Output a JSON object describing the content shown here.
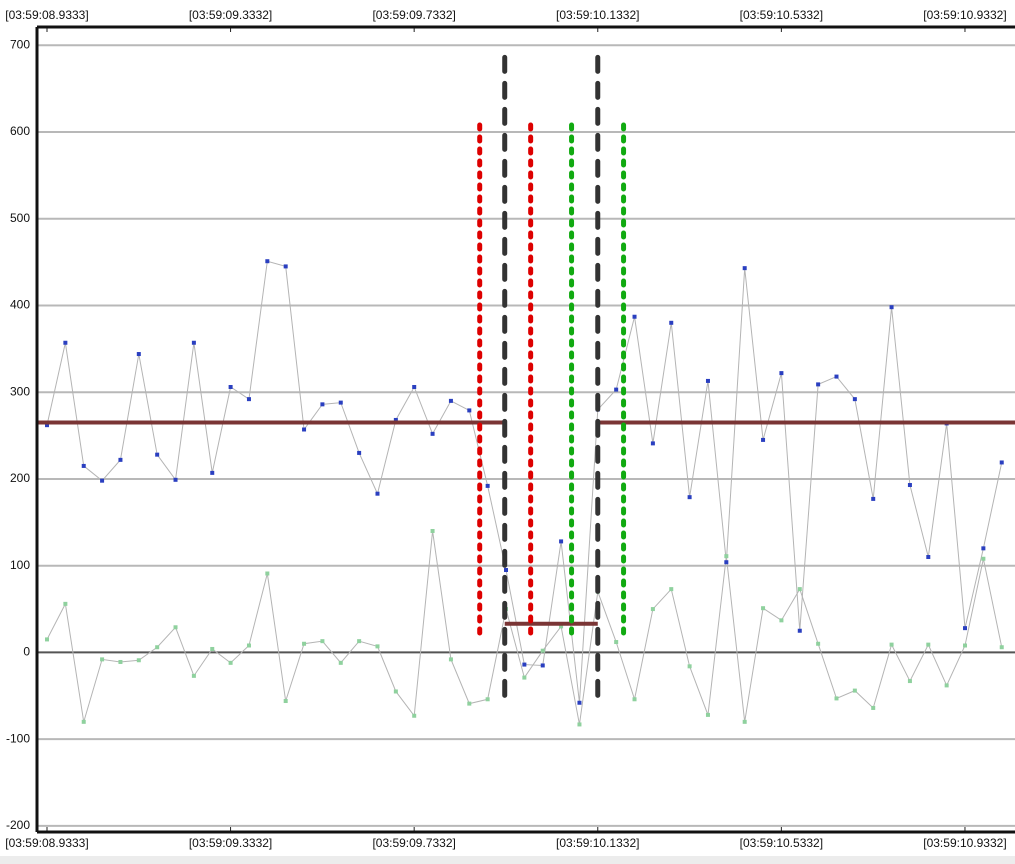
{
  "chart_data": {
    "type": "line",
    "xlim": [
      8.9115,
      11.0422
    ],
    "ylim": [
      -207,
      721
    ],
    "xticks": [
      {
        "value": 8.9333,
        "label": "[03:59:08.9333]"
      },
      {
        "value": 9.3332,
        "label": "[03:59:09.3332]"
      },
      {
        "value": 9.7332,
        "label": "[03:59:09.7332]"
      },
      {
        "value": 10.1332,
        "label": "[03:59:10.1332]"
      },
      {
        "value": 10.5332,
        "label": "[03:59:10.5332]"
      },
      {
        "value": 10.9332,
        "label": "[03:59:10.9332]"
      }
    ],
    "yticks": [
      -200,
      -100,
      0,
      100,
      200,
      300,
      400,
      500,
      600,
      700
    ],
    "grid": true,
    "line_color": "#b4b4b4",
    "x": [
      8.9333,
      8.9733,
      9.0133,
      9.0533,
      9.0933,
      9.1333,
      9.1733,
      9.2133,
      9.2533,
      9.2933,
      9.3333,
      9.3733,
      9.4133,
      9.4533,
      9.4933,
      9.5333,
      9.5733,
      9.6133,
      9.6533,
      9.6933,
      9.7333,
      9.7733,
      9.8133,
      9.8533,
      9.8933,
      9.9333,
      9.9733,
      10.0133,
      10.0533,
      10.0933,
      10.1333,
      10.1733,
      10.2133,
      10.2533,
      10.2933,
      10.3333,
      10.3733,
      10.4133,
      10.4533,
      10.4933,
      10.5333,
      10.5733,
      10.6133,
      10.6533,
      10.6933,
      10.7333,
      10.7733,
      10.8133,
      10.8533,
      10.8933,
      10.9333,
      10.9733,
      11.0133
    ],
    "series": [
      {
        "color": "#2a3fc0",
        "values": [
          262,
          357,
          215,
          198,
          222,
          344,
          228,
          199,
          357,
          207,
          306,
          292,
          451,
          445,
          257,
          286,
          288,
          230,
          183,
          268,
          306,
          252,
          290,
          279,
          192,
          95,
          -14,
          -15,
          128,
          -58,
          280,
          303,
          387,
          241,
          380,
          179,
          313,
          104,
          443,
          245,
          322,
          25,
          309,
          318,
          292,
          177,
          398,
          193,
          110,
          264,
          28,
          120,
          219
        ]
      },
      {
        "color": "#8fd19e",
        "values": [
          15,
          56,
          -80,
          -8,
          -11,
          -9,
          6,
          29,
          -27,
          4,
          -12,
          8,
          91,
          -56,
          10,
          13,
          -12,
          13,
          7,
          -45,
          -73,
          140,
          -8,
          -59,
          -54,
          50,
          -29,
          2,
          30,
          -83,
          70,
          12,
          -54,
          50,
          73,
          -16,
          -72,
          111,
          -80,
          51,
          37,
          73,
          10,
          -53,
          -44,
          -64,
          9,
          -33,
          9,
          -38,
          8,
          108,
          6
        ]
      }
    ],
    "threshold": {
      "color": "#7a3535",
      "segments": [
        {
          "x": [
            8.9115,
            9.9305
          ],
          "y": 265
        },
        {
          "x": [
            9.9305,
            10.1332
          ],
          "y": 33
        },
        {
          "x": [
            10.1332,
            11.0422
          ],
          "y": 265
        }
      ]
    },
    "vlines": [
      {
        "x": 9.876,
        "y": [
          17,
          608
        ],
        "color": "#dd0000",
        "style": "dotted"
      },
      {
        "x": 9.9305,
        "y": [
          -58,
          686
        ],
        "color": "#333333",
        "style": "dashed"
      },
      {
        "x": 9.987,
        "y": [
          17,
          608
        ],
        "color": "#dd0000",
        "style": "dotted"
      },
      {
        "x": 10.0761,
        "y": [
          17,
          608
        ],
        "color": "#11aa11",
        "style": "dotted"
      },
      {
        "x": 10.1332,
        "y": [
          -58,
          686
        ],
        "color": "#333333",
        "style": "dashed"
      },
      {
        "x": 10.1894,
        "y": [
          17,
          608
        ],
        "color": "#11aa11",
        "style": "dotted"
      }
    ]
  }
}
